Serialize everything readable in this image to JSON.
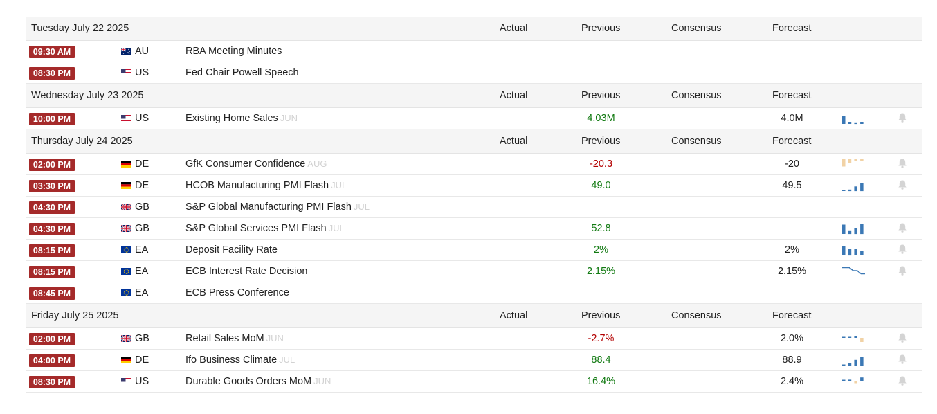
{
  "columns": {
    "actual": "Actual",
    "previous": "Previous",
    "consensus": "Consensus",
    "forecast": "Forecast"
  },
  "days": [
    {
      "date": "Tuesday July 22 2025",
      "events": [
        {
          "time": "09:30 AM",
          "flag": "AU",
          "country": "AU",
          "name": "RBA Meeting Minutes",
          "ref": "",
          "previous": "",
          "forecast": "",
          "trend": "",
          "spark": null
        },
        {
          "time": "08:30 PM",
          "flag": "US",
          "country": "US",
          "name": "Fed Chair Powell Speech",
          "ref": "",
          "previous": "",
          "forecast": "",
          "trend": "",
          "spark": null
        }
      ]
    },
    {
      "date": "Wednesday July 23 2025",
      "events": [
        {
          "time": "10:00 PM",
          "flag": "US",
          "country": "US",
          "name": "Existing Home Sales",
          "ref": "JUN",
          "previous": "4.03M",
          "forecast": "4.0M",
          "trend": "pos",
          "spark": {
            "type": "bars",
            "values": [
              0.8,
              0.2,
              0.15,
              0.2
            ],
            "colors": [
              "blue",
              "blue",
              "blue",
              "blue"
            ]
          }
        }
      ]
    },
    {
      "date": "Thursday July 24 2025",
      "events": [
        {
          "time": "02:00 PM",
          "flag": "DE",
          "country": "DE",
          "name": "GfK Consumer Confidence",
          "ref": "AUG",
          "previous": "-20.3",
          "forecast": "-20",
          "trend": "neg",
          "spark": {
            "type": "neg-bars",
            "values": [
              0.7,
              0.4,
              0.15,
              0.15
            ],
            "colors": [
              "tan",
              "tan",
              "tan",
              "tan"
            ]
          }
        },
        {
          "time": "03:30 PM",
          "flag": "DE",
          "country": "DE",
          "name": "HCOB Manufacturing PMI Flash",
          "ref": "JUL",
          "previous": "49.0",
          "forecast": "49.5",
          "trend": "pos",
          "spark": {
            "type": "bars",
            "values": [
              0.1,
              0.15,
              0.45,
              0.75
            ],
            "colors": [
              "blue",
              "blue",
              "blue",
              "blue"
            ]
          }
        },
        {
          "time": "04:30 PM",
          "flag": "GB",
          "country": "GB",
          "name": "S&P Global Manufacturing PMI Flash",
          "ref": "JUL",
          "previous": "",
          "forecast": "",
          "trend": "",
          "spark": null
        },
        {
          "time": "04:30 PM",
          "flag": "GB",
          "country": "GB",
          "name": "S&P Global Services PMI Flash",
          "ref": "JUL",
          "previous": "52.8",
          "forecast": "",
          "trend": "pos",
          "spark": {
            "type": "bars",
            "values": [
              0.9,
              0.35,
              0.55,
              0.95
            ],
            "colors": [
              "blue",
              "blue",
              "blue",
              "blue"
            ]
          }
        },
        {
          "time": "08:15 PM",
          "flag": "EU",
          "country": "EA",
          "name": "Deposit Facility Rate",
          "ref": "",
          "previous": "2%",
          "forecast": "2%",
          "trend": "pos",
          "spark": {
            "type": "bars",
            "values": [
              0.9,
              0.65,
              0.6,
              0.4
            ],
            "colors": [
              "blue",
              "blue",
              "blue",
              "blue"
            ]
          }
        },
        {
          "time": "08:15 PM",
          "flag": "EU",
          "country": "EA",
          "name": "ECB Interest Rate Decision",
          "ref": "",
          "previous": "2.15%",
          "forecast": "2.15%",
          "trend": "pos",
          "spark": {
            "type": "line",
            "values": [
              0.9,
              0.9,
              0.9,
              0.6,
              0.6,
              0.3,
              0.3
            ],
            "colors": [
              "blue"
            ]
          }
        },
        {
          "time": "08:45 PM",
          "flag": "EU",
          "country": "EA",
          "name": "ECB Press Conference",
          "ref": "",
          "previous": "",
          "forecast": "",
          "trend": "",
          "spark": null
        }
      ]
    },
    {
      "date": "Friday July 25 2025",
      "events": [
        {
          "time": "02:00 PM",
          "flag": "GB",
          "country": "GB",
          "name": "Retail Sales MoM",
          "ref": "JUN",
          "previous": "-2.7%",
          "forecast": "2.0%",
          "trend": "neg",
          "spark": {
            "type": "mixed",
            "values": [
              0.15,
              0.1,
              0.35,
              -0.6
            ],
            "colors": [
              "blue",
              "blue",
              "blue",
              "tan"
            ]
          }
        },
        {
          "time": "04:00 PM",
          "flag": "DE",
          "country": "DE",
          "name": "Ifo Business Climate",
          "ref": "JUL",
          "previous": "88.4",
          "forecast": "88.9",
          "trend": "pos",
          "spark": {
            "type": "bars",
            "values": [
              0.1,
              0.25,
              0.55,
              0.85
            ],
            "colors": [
              "blue",
              "blue",
              "blue",
              "blue"
            ]
          }
        },
        {
          "time": "08:30 PM",
          "flag": "US",
          "country": "US",
          "name": "Durable Goods Orders MoM",
          "ref": "JUN",
          "previous": "16.4%",
          "forecast": "2.4%",
          "trend": "pos",
          "spark": {
            "type": "mixed",
            "values": [
              0.1,
              0.2,
              -0.35,
              0.6
            ],
            "colors": [
              "blue",
              "blue",
              "tan",
              "blue"
            ]
          }
        }
      ]
    }
  ],
  "colors": {
    "badge": "#a52a2a",
    "positive": "#127a12",
    "negative": "#b30000",
    "spark_blue": "#3b78b5",
    "spark_tan": "#f1d2a5",
    "bell": "#d4d4d4"
  },
  "icons": {
    "alert": "bell-icon"
  }
}
